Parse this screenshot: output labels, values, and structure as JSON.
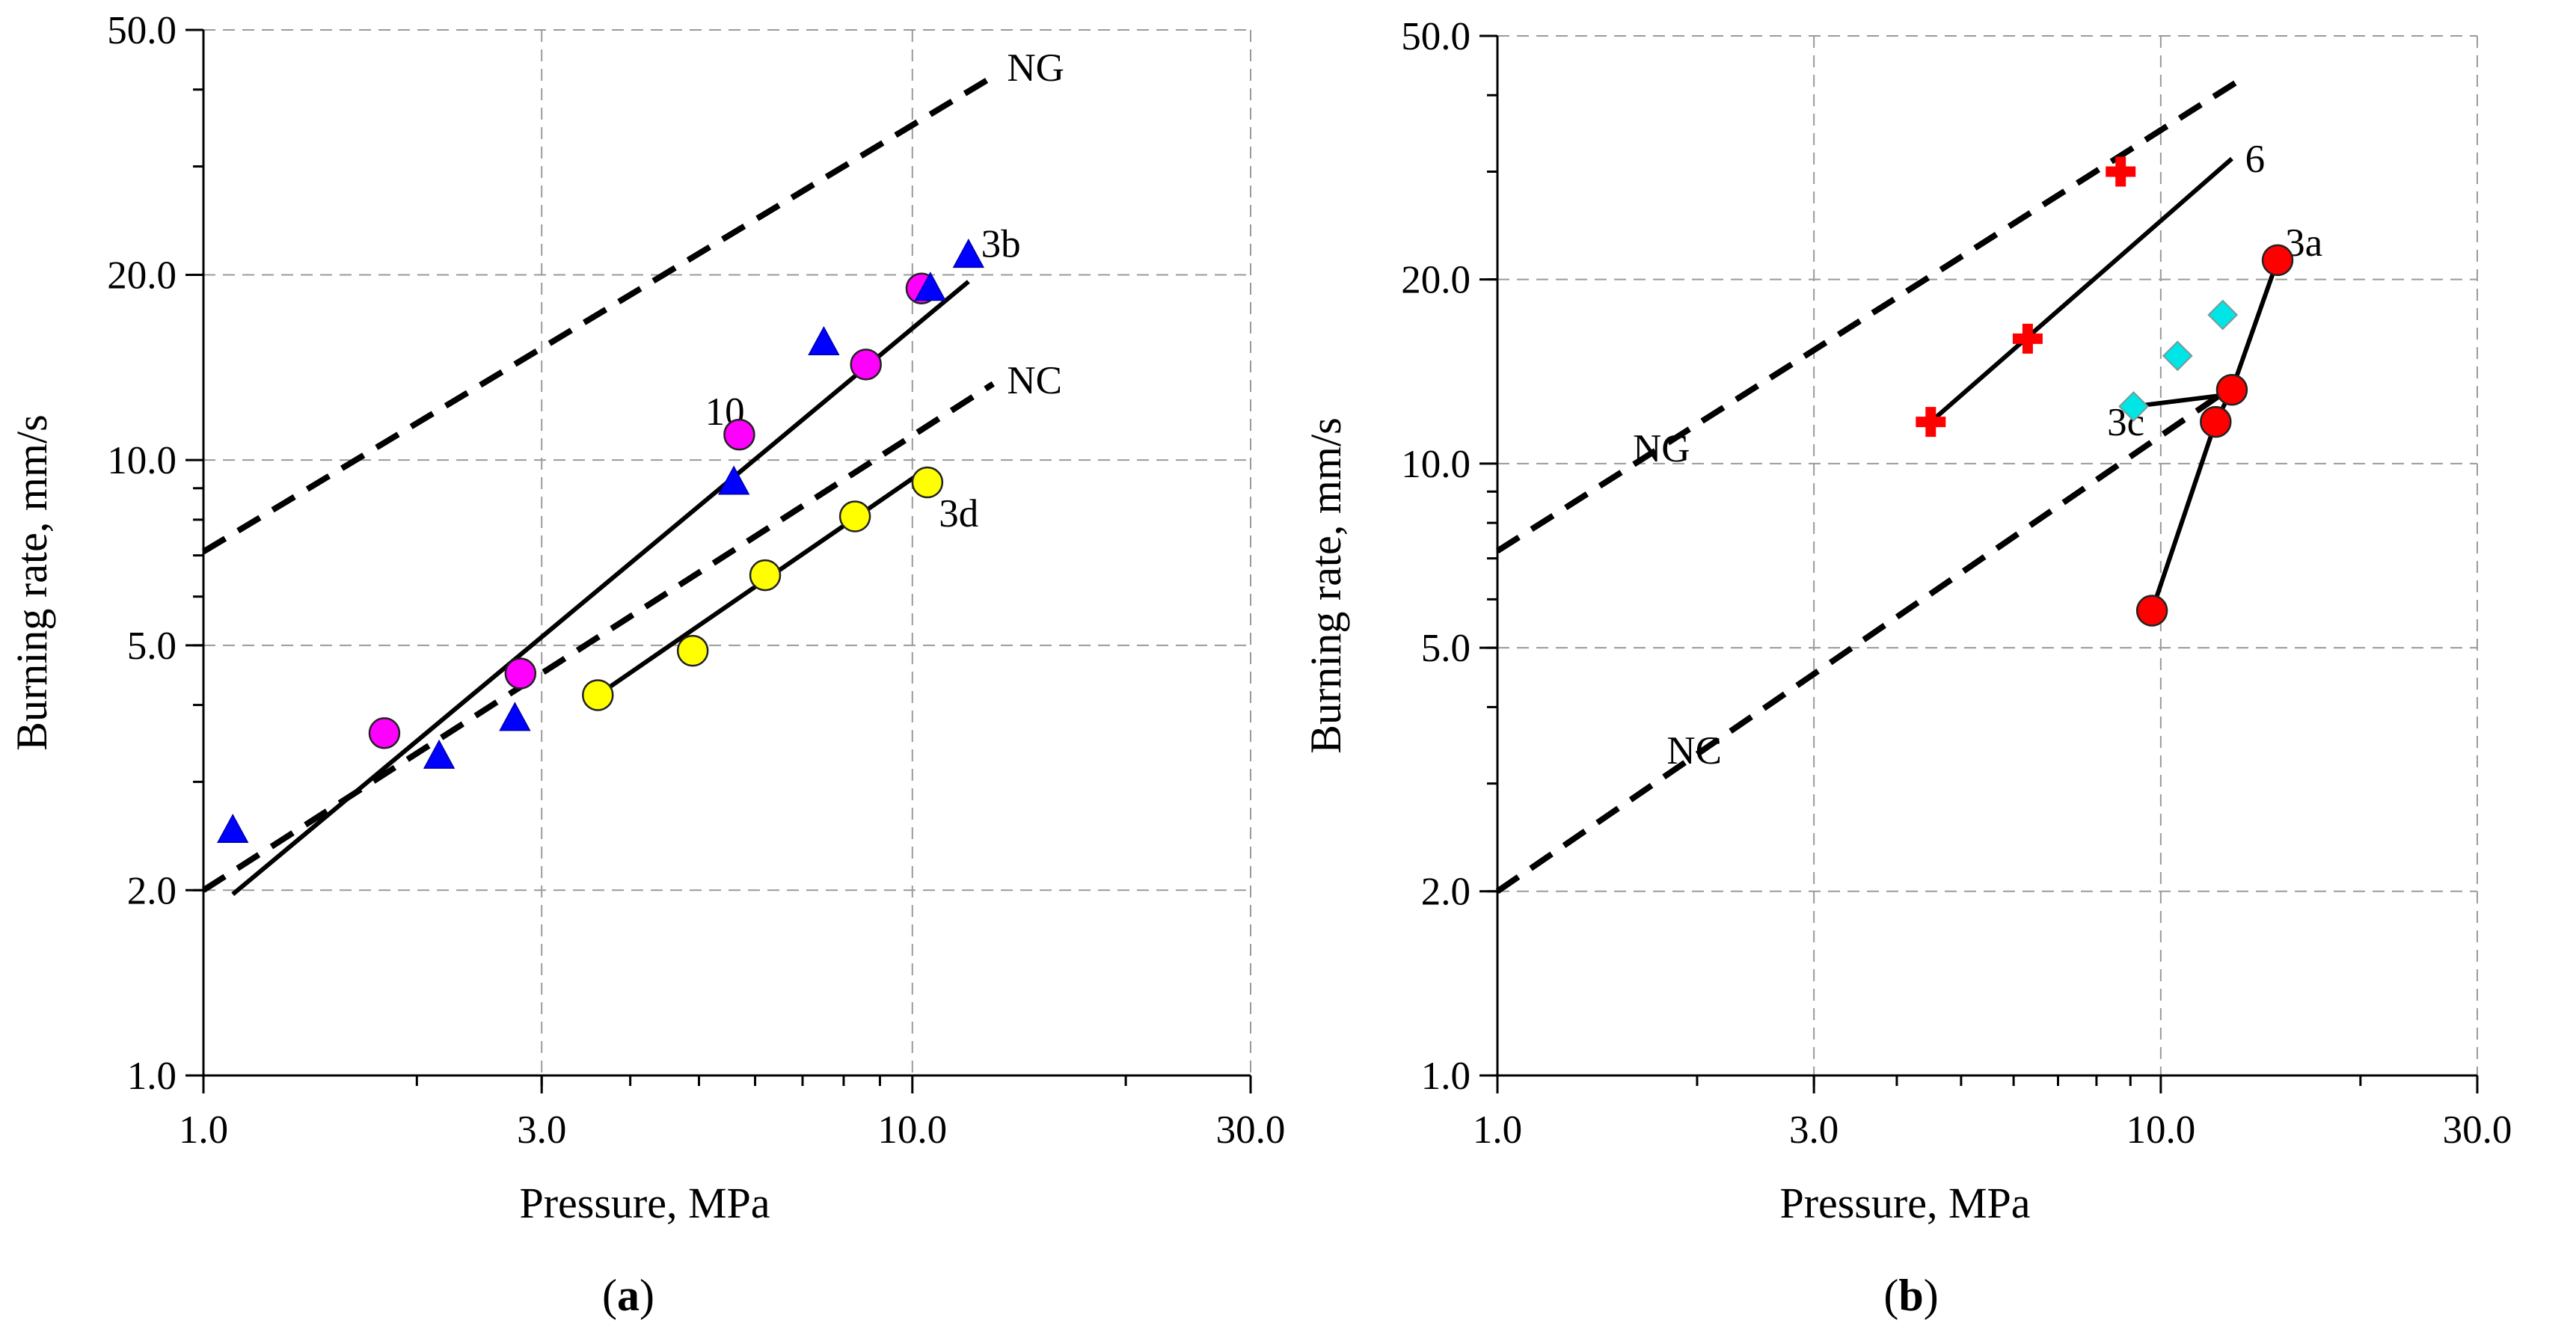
{
  "chart_data": [
    {
      "type": "scatter",
      "panel_label_open": "(",
      "panel_label_letter": "a",
      "panel_label_close": ")",
      "xlabel": "Pressure, MPa",
      "ylabel": "Burning rate, mm/s",
      "x_scale": "log",
      "y_scale": "log",
      "xlim": [
        1.0,
        30.0
      ],
      "ylim": [
        1.0,
        50.0
      ],
      "x_ticks": [
        1,
        3,
        10,
        30
      ],
      "x_tick_labels": [
        "1.0",
        "3.0",
        "10.0",
        "30.0"
      ],
      "y_ticks": [
        1,
        2,
        5,
        10,
        20,
        50
      ],
      "y_tick_labels": [
        "1.0",
        "2.0",
        "5.0",
        "10.0",
        "20.0",
        "50.0"
      ],
      "grid": true,
      "lines": [
        {
          "label": "NG",
          "style": "dashed",
          "x": [
            1.0,
            13.0
          ],
          "y": [
            7.1,
            42.0
          ],
          "label_at": [
            13.6,
            43.5
          ]
        },
        {
          "label": "NC",
          "style": "dashed",
          "x": [
            1.0,
            13.0
          ],
          "y": [
            2.0,
            13.3
          ],
          "label_at": [
            13.6,
            13.5
          ]
        },
        {
          "label": "3b",
          "style": "solid",
          "x": [
            1.1,
            12.0
          ],
          "y": [
            1.97,
            19.5
          ],
          "label_at": [
            12.5,
            22.5
          ]
        },
        {
          "label": "3d",
          "style": "solid",
          "x": [
            3.6,
            10.5
          ],
          "y": [
            4.15,
            9.7
          ],
          "label_at": [
            10.9,
            8.2
          ]
        }
      ],
      "series": [
        {
          "label": "10",
          "marker": "circle",
          "color": "#ff00ff",
          "label_at": [
            5.1,
            12.0
          ],
          "x": [
            1.8,
            2.8,
            5.7,
            8.6,
            10.3
          ],
          "y": [
            3.6,
            4.5,
            11.0,
            14.3,
            19.0
          ]
        },
        {
          "marker": "triangle",
          "color": "#0000ff",
          "x": [
            1.1,
            2.15,
            2.75,
            5.6,
            7.5,
            10.6,
            12.0
          ],
          "y": [
            2.5,
            3.3,
            3.8,
            9.2,
            15.5,
            19.0,
            21.5
          ]
        },
        {
          "marker": "circle",
          "color": "#ffff00",
          "x": [
            3.6,
            4.9,
            6.2,
            8.3,
            10.5
          ],
          "y": [
            4.15,
            4.9,
            6.5,
            8.1,
            9.2
          ]
        }
      ]
    },
    {
      "type": "scatter",
      "panel_label_open": "(",
      "panel_label_letter": "b",
      "panel_label_close": ")",
      "xlabel": "Pressure, MPa",
      "ylabel": "Burning rate, mm/s",
      "x_scale": "log",
      "y_scale": "log",
      "xlim": [
        1.0,
        30.0
      ],
      "ylim": [
        1.0,
        50.0
      ],
      "x_ticks": [
        1,
        3,
        10,
        30
      ],
      "x_tick_labels": [
        "1.0",
        "3.0",
        "10.0",
        "30.0"
      ],
      "y_ticks": [
        1,
        2,
        5,
        10,
        20,
        50
      ],
      "y_tick_labels": [
        "1.0",
        "2.0",
        "5.0",
        "10.0",
        "20.0",
        "50.0"
      ],
      "grid": true,
      "lines": [
        {
          "label": "NG",
          "style": "dashed",
          "x": [
            1.0,
            13.0
          ],
          "y": [
            7.2,
            42.0
          ],
          "label_at": [
            1.6,
            10.6
          ]
        },
        {
          "label": "NC",
          "style": "dashed",
          "x": [
            1.0,
            13.0
          ],
          "y": [
            2.0,
            13.5
          ],
          "label_at": [
            1.8,
            3.4
          ]
        },
        {
          "label": "6",
          "style": "solid",
          "x": [
            4.5,
            12.8
          ],
          "y": [
            11.7,
            31.5
          ],
          "label_at": [
            13.4,
            31.5
          ]
        },
        {
          "label": "3a",
          "style": "solid",
          "x": [
            9.7,
            12.1,
            12.8,
            15.0
          ],
          "y": [
            5.75,
            11.7,
            13.2,
            21.5
          ],
          "label_at": [
            15.4,
            23.0
          ]
        },
        {
          "label": "3c",
          "style": "solid",
          "x": [
            9.1,
            12.9
          ],
          "y": [
            12.4,
            13.0
          ],
          "label_at": [
            8.3,
            11.7
          ]
        }
      ],
      "series": [
        {
          "marker": "plus",
          "color": "#ff0000",
          "x": [
            4.5,
            6.3,
            8.7
          ],
          "y": [
            11.7,
            16.0,
            30.0
          ]
        },
        {
          "marker": "circle",
          "color": "#ff0000",
          "x": [
            9.7,
            12.1,
            12.8,
            15.0
          ],
          "y": [
            5.75,
            11.7,
            13.2,
            21.5
          ]
        },
        {
          "marker": "diamond",
          "color": "#00e5e5",
          "x": [
            9.1,
            10.6,
            12.4
          ],
          "y": [
            12.4,
            15.0,
            17.5
          ]
        }
      ]
    }
  ]
}
